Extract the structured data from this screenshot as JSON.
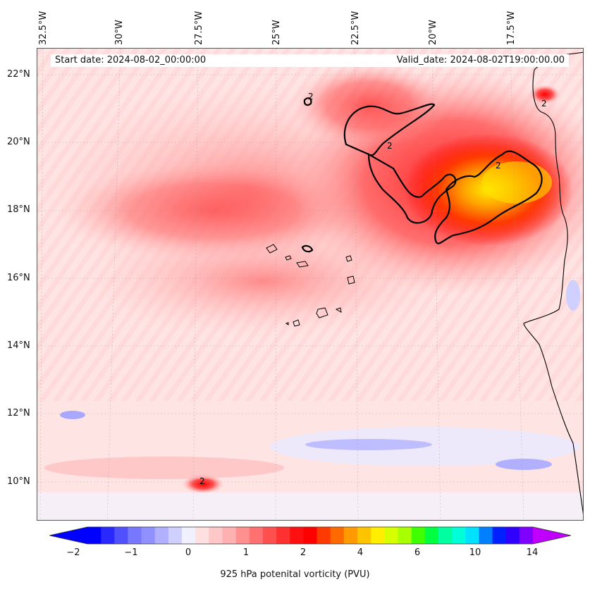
{
  "map": {
    "start_date": "Start date: 2024-08-02_00:00:00",
    "valid_date": "Valid_date: 2024-08-02T19:00:00.00",
    "longitude_labels": [
      "32.5°W",
      "30°W",
      "27.5°W",
      "25°W",
      "22.5°W",
      "20°W",
      "17.5°W"
    ],
    "latitude_labels": [
      "22°N",
      "20°N",
      "18°N",
      "16°N",
      "14°N",
      "12°N",
      "10°N"
    ],
    "contour_label": "2",
    "extent": {
      "lon_min": -32.6,
      "lon_max": -14.9,
      "lat_min": 8.9,
      "lat_max": 22.8
    }
  },
  "colorbar": {
    "label": "925 hPa potenital vorticity (PVU)",
    "tick_labels": [
      "−2",
      "−1",
      "0",
      "1",
      "2",
      "4",
      "6",
      "10",
      "14"
    ],
    "colors": [
      "#0000ff",
      "#2828ff",
      "#5050ff",
      "#7878ff",
      "#9090ff",
      "#b0b0ff",
      "#d0d0ff",
      "#f0f0ff",
      "#ffe0e0",
      "#ffc8c8",
      "#ffb0b0",
      "#ff9090",
      "#ff7070",
      "#ff5050",
      "#ff3030",
      "#ff1010",
      "#ff0000",
      "#ff3a00",
      "#ff6a00",
      "#ff9a00",
      "#ffc400",
      "#ffee00",
      "#d8ff00",
      "#a8ff00",
      "#40ff00",
      "#00ff40",
      "#00ffa0",
      "#00ffd8",
      "#00e0ff",
      "#0080ff",
      "#0020ff",
      "#3000ff",
      "#8000ff"
    ],
    "extend_low_color": "#0000ff",
    "extend_high_color": "#c000ff"
  }
}
